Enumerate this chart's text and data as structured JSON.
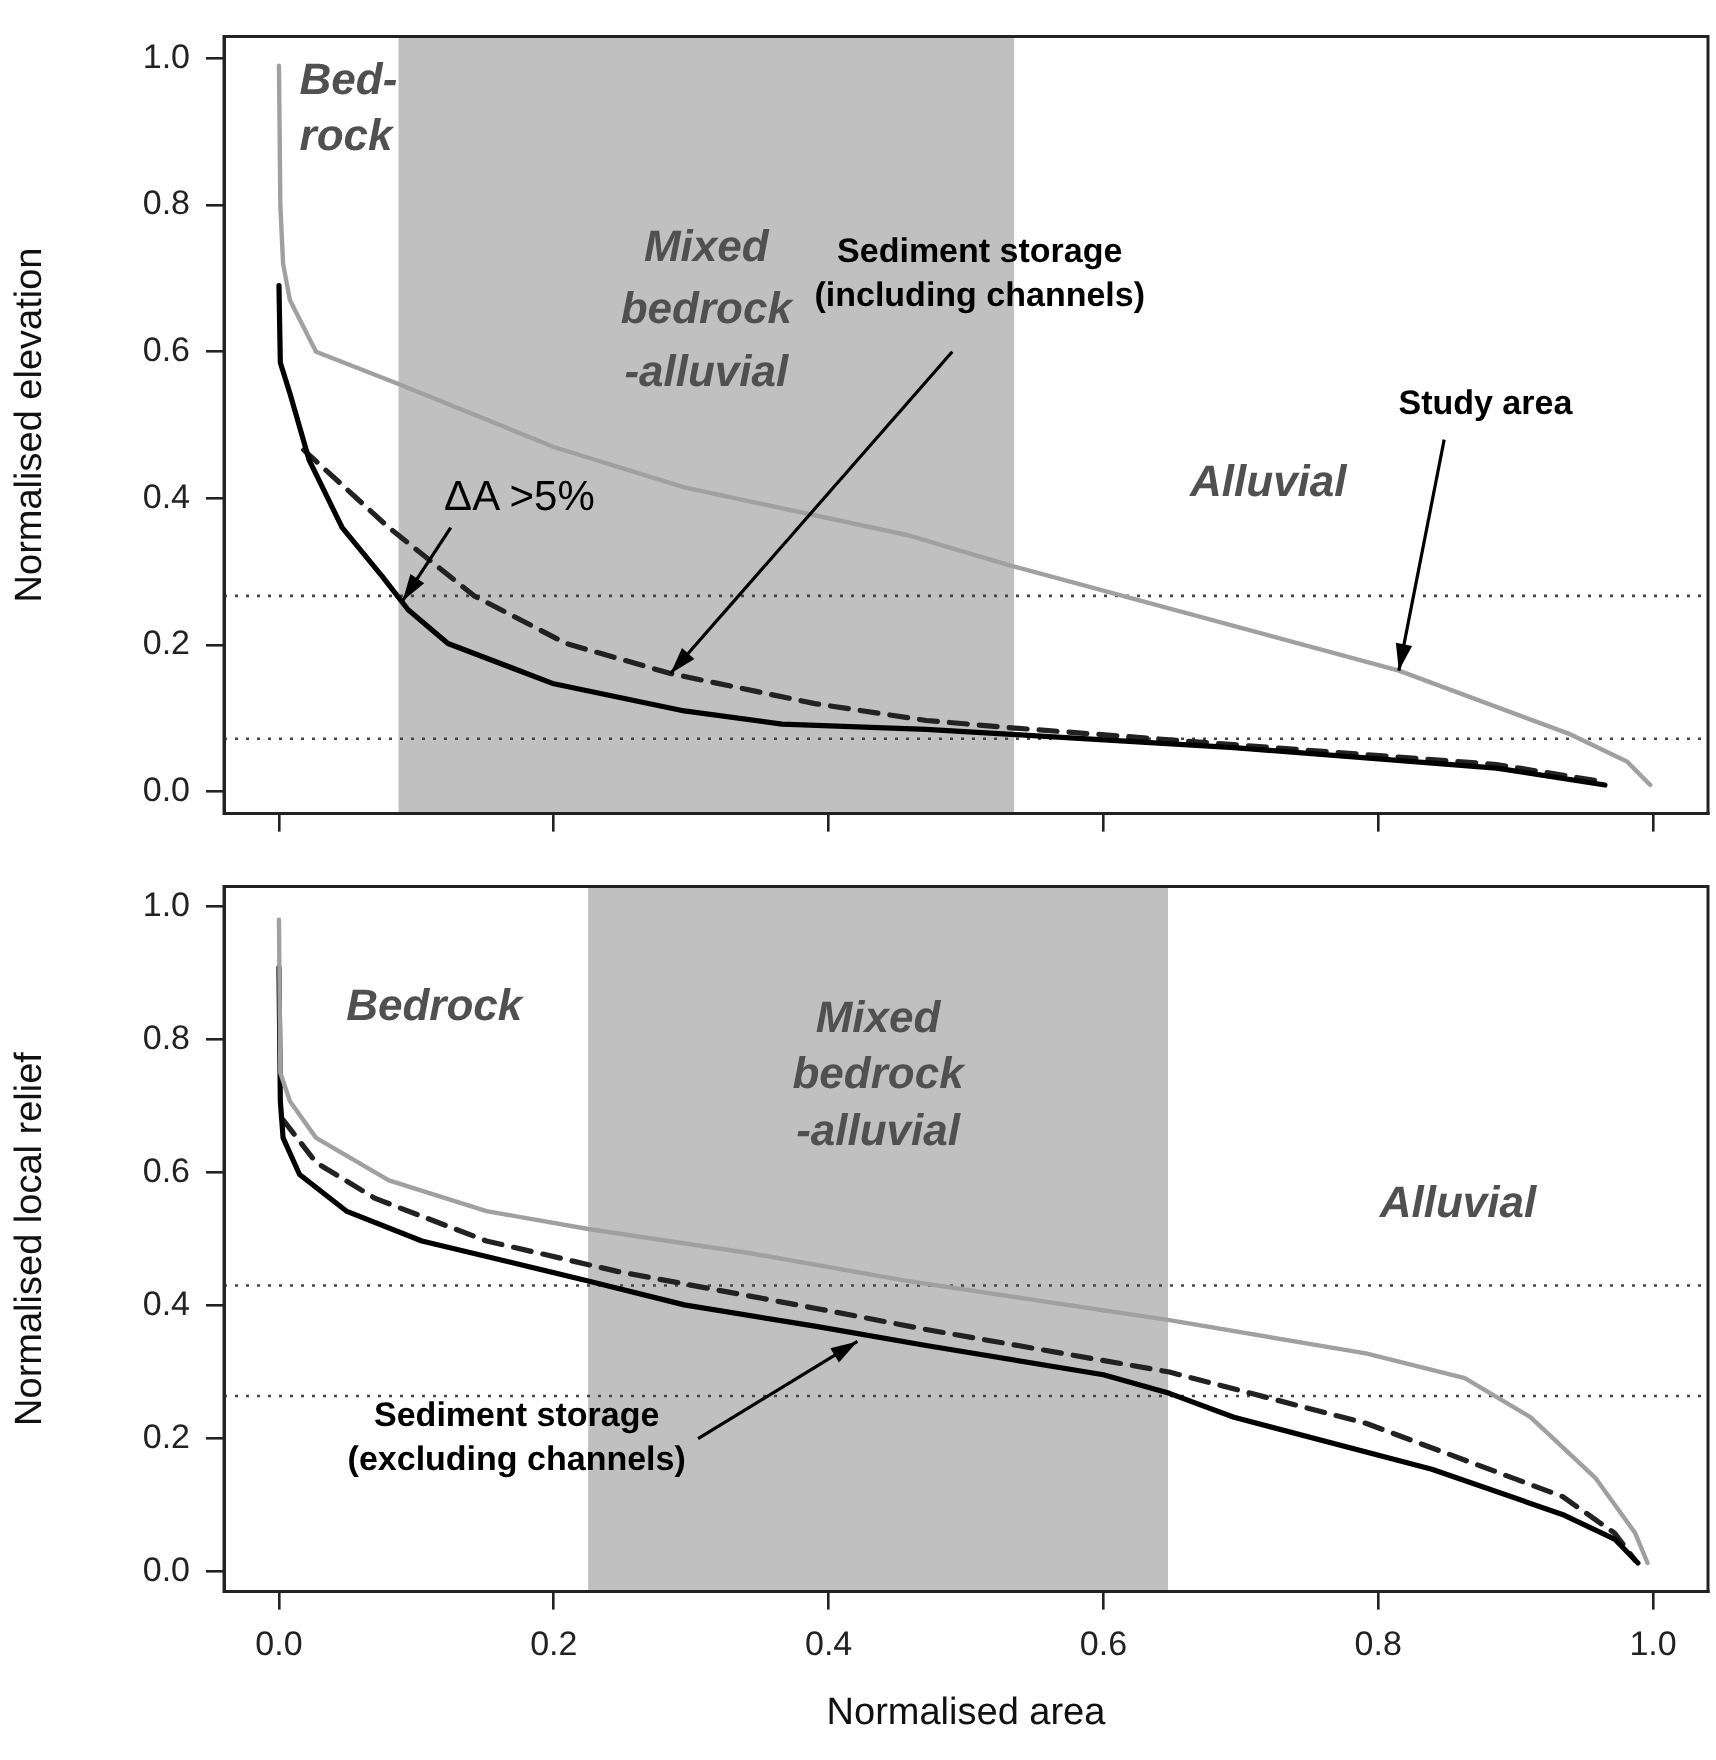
{
  "chart_data": [
    {
      "type": "line",
      "ylabel": "Normalised elevation",
      "xlim": [
        -0.04,
        1.04
      ],
      "ylim": [
        -0.03,
        1.03
      ],
      "xticks": [
        {
          "value": 0,
          "label": null
        },
        {
          "value": 0.2,
          "label": null
        },
        {
          "value": 0.4,
          "label": null
        },
        {
          "value": 0.6,
          "label": null
        },
        {
          "value": 0.8,
          "label": null
        },
        {
          "value": 1,
          "label": null
        }
      ],
      "yticks": [
        {
          "value": 0,
          "label": "0.0"
        },
        {
          "value": 0.2,
          "label": "0.2"
        },
        {
          "value": 0.4,
          "label": "0.4"
        },
        {
          "value": 0.6,
          "label": "0.6"
        },
        {
          "value": 0.8,
          "label": "0.8"
        },
        {
          "value": 1,
          "label": "1.0"
        }
      ],
      "tick_labels": "y",
      "grid": false,
      "legend": false,
      "marker": "none",
      "series": [
        {
          "color": "#a0a0a0",
          "line_style": "solid",
          "x": [
            0,
            0.001,
            0.003,
            0.008,
            0.027,
            0.087,
            0.2,
            0.295,
            0.457,
            0.533,
            0.815,
            0.94,
            0.981,
            0.998
          ],
          "values": [
            0.99,
            0.8,
            0.72,
            0.67,
            0.6,
            0.556,
            0.47,
            0.415,
            0.35,
            0.308,
            0.165,
            0.078,
            0.041,
            0.009
          ]
        },
        {
          "color": "#000000",
          "line_style": "solid",
          "x": [
            0,
            0.001,
            0.008,
            0.022,
            0.046,
            0.075,
            0.094,
            0.123,
            0.2,
            0.295,
            0.366,
            0.471,
            0.533,
            0.695,
            0.886,
            0.965
          ],
          "values": [
            0.69,
            0.585,
            0.543,
            0.452,
            0.36,
            0.294,
            0.248,
            0.202,
            0.147,
            0.11,
            0.092,
            0.085,
            0.078,
            0.06,
            0.032,
            0.009
          ]
        },
        {
          "color": "#222222",
          "line_style": "dashed",
          "x": [
            0.018,
            0.08,
            0.142,
            0.209,
            0.285,
            0.39,
            0.471,
            0.533,
            0.695,
            0.886,
            0.962
          ],
          "values": [
            0.466,
            0.36,
            0.267,
            0.202,
            0.161,
            0.12,
            0.097,
            0.087,
            0.064,
            0.037,
            0.014
          ]
        }
      ],
      "bands": [
        {
          "axis": "x",
          "from": 0.087,
          "to": 0.535,
          "label": "Mixed\nbedrock\n-alluvial",
          "color": "#c0c0c0"
        }
      ],
      "ref_lines": [
        {
          "axis": "y",
          "value": 0.267,
          "line_style": "dotted",
          "color": "#444444"
        },
        {
          "axis": "y",
          "value": 0.072,
          "line_style": "dotted",
          "color": "#444444"
        }
      ],
      "annotations": [
        "Bed-\nrock",
        "Alluvial",
        {
          "text": "ΔA >5%",
          "x": 0.09,
          "y": 0.26
        },
        {
          "text": "Sediment storage\n(including channels)",
          "x": 0.285,
          "y": 0.161
        },
        {
          "text": "Study area",
          "x": 0.815,
          "y": 0.165
        }
      ]
    },
    {
      "type": "line",
      "ylabel": "Normalised local relief",
      "xlabel": "Normalised area",
      "xlim": [
        -0.04,
        1.04
      ],
      "ylim": [
        -0.03,
        1.03
      ],
      "xticks": [
        {
          "value": 0,
          "label": "0.0"
        },
        {
          "value": 0.2,
          "label": "0.2"
        },
        {
          "value": 0.4,
          "label": "0.4"
        },
        {
          "value": 0.6,
          "label": "0.6"
        },
        {
          "value": 0.8,
          "label": "0.8"
        },
        {
          "value": 1,
          "label": "1.0"
        }
      ],
      "yticks": [
        {
          "value": 0,
          "label": "0.0"
        },
        {
          "value": 0.2,
          "label": "0.2"
        },
        {
          "value": 0.4,
          "label": "0.4"
        },
        {
          "value": 0.6,
          "label": "0.6"
        },
        {
          "value": 0.8,
          "label": "0.8"
        },
        {
          "value": 1,
          "label": "1.0"
        }
      ],
      "grid": false,
      "legend": false,
      "marker": "none",
      "series": [
        {
          "color": "#a0a0a0",
          "line_style": "solid",
          "x": [
            0,
            0.001,
            0.008,
            0.027,
            0.08,
            0.151,
            0.225,
            0.342,
            0.457,
            0.648,
            0.791,
            0.863,
            0.911,
            0.958,
            0.987,
            0.996
          ],
          "values": [
            0.98,
            0.75,
            0.707,
            0.652,
            0.588,
            0.542,
            0.515,
            0.479,
            0.437,
            0.378,
            0.328,
            0.291,
            0.232,
            0.141,
            0.058,
            0.013
          ]
        },
        {
          "color": "#000000",
          "line_style": "solid",
          "x": [
            0,
            0.001,
            0.003,
            0.015,
            0.049,
            0.104,
            0.225,
            0.295,
            0.39,
            0.471,
            0.6,
            0.648,
            0.695,
            0.839,
            0.934,
            0.972,
            0.989
          ],
          "values": [
            0.908,
            0.707,
            0.652,
            0.597,
            0.542,
            0.497,
            0.437,
            0.401,
            0.369,
            0.34,
            0.296,
            0.268,
            0.232,
            0.154,
            0.086,
            0.049,
            0.013
          ]
        },
        {
          "color": "#222222",
          "line_style": "dashed",
          "x": [
            0.003,
            0.027,
            0.07,
            0.151,
            0.247,
            0.39,
            0.471,
            0.648,
            0.791,
            0.934,
            0.972,
            0.987
          ],
          "values": [
            0.679,
            0.615,
            0.561,
            0.497,
            0.451,
            0.396,
            0.364,
            0.3,
            0.223,
            0.113,
            0.058,
            0.017
          ]
        }
      ],
      "bands": [
        {
          "axis": "x",
          "from": 0.225,
          "to": 0.647,
          "label": "Mixed\nbedrock\n-alluvial",
          "color": "#c0c0c0"
        }
      ],
      "ref_lines": [
        {
          "axis": "y",
          "value": 0.43,
          "line_style": "dotted",
          "color": "#444444"
        },
        {
          "axis": "y",
          "value": 0.264,
          "line_style": "dotted",
          "color": "#444444"
        }
      ],
      "annotations": [
        "Bedrock",
        "Alluvial",
        {
          "text": "Sediment storage\n(excluding channels)",
          "x": 0.421,
          "y": 0.346
        }
      ]
    }
  ]
}
